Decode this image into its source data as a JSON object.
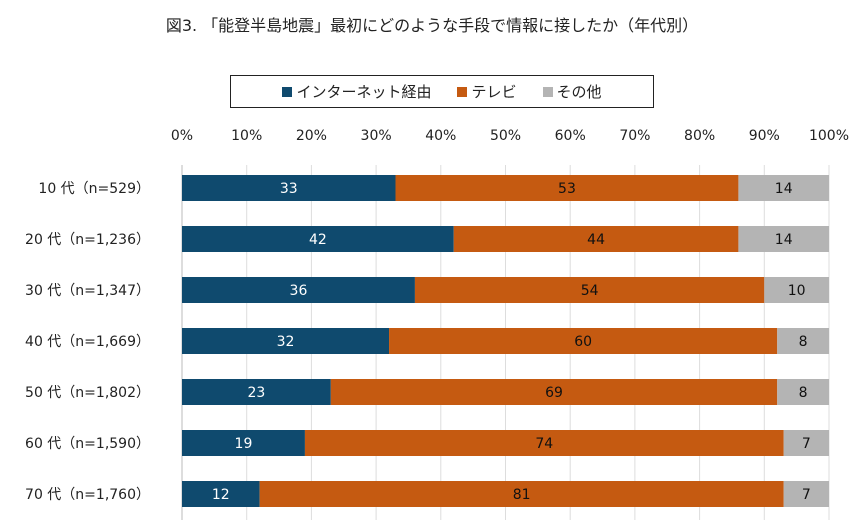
{
  "chart_data": {
    "type": "bar",
    "orientation": "horizontal",
    "stacked": true,
    "title": "図3. 「能登半島地震」最初にどのような手段で情報に接したか（年代別）",
    "categories": [
      "10 代（n=529）",
      "20 代（n=1,236）",
      "30 代（n=1,347）",
      "40 代（n=1,669）",
      "50 代（n=1,802）",
      "60 代（n=1,590）",
      "70 代（n=1,760）"
    ],
    "series": [
      {
        "name": "インターネット経由",
        "color": "#0f4a6e",
        "values": [
          33,
          42,
          36,
          32,
          23,
          19,
          12
        ]
      },
      {
        "name": "テレビ",
        "color": "#c55a11",
        "values": [
          53,
          44,
          54,
          60,
          69,
          74,
          81
        ]
      },
      {
        "name": "その他",
        "color": "#b4b4b4",
        "values": [
          14,
          14,
          10,
          8,
          8,
          7,
          7
        ]
      }
    ],
    "xlim": [
      0,
      100
    ],
    "xticks": [
      "0%",
      "10%",
      "20%",
      "30%",
      "40%",
      "50%",
      "60%",
      "70%",
      "80%",
      "90%",
      "100%"
    ],
    "grid": true,
    "legend_position": "top"
  }
}
